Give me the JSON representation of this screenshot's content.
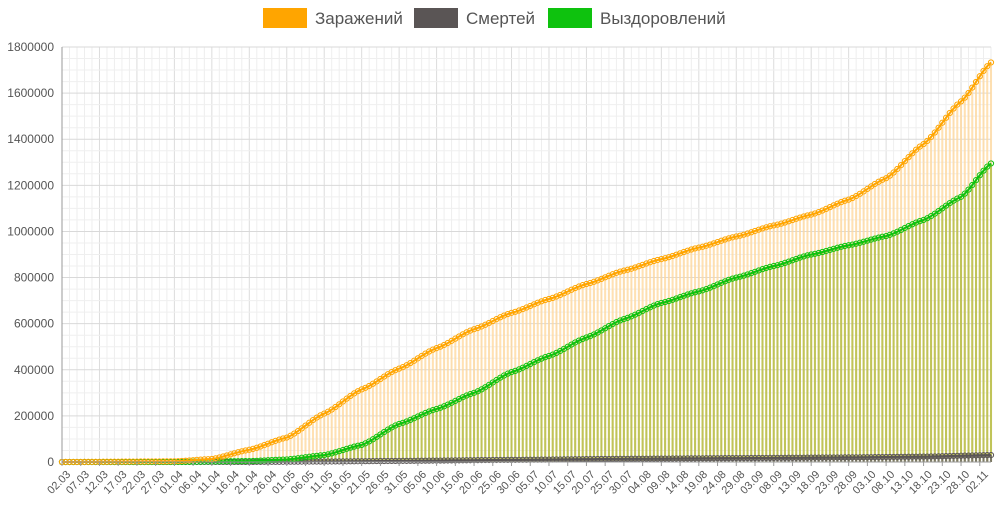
{
  "chart_data": {
    "type": "line",
    "title": "",
    "xlabel": "",
    "ylabel": "",
    "ylim": [
      0,
      1800000
    ],
    "yticks": [
      0,
      200000,
      400000,
      600000,
      800000,
      1000000,
      1200000,
      1400000,
      1600000,
      1800000
    ],
    "grid": true,
    "legend_position": "top",
    "start_date": "2020-03-02",
    "end_date": "2020-11-05",
    "x_tick_labels": [
      "02.03",
      "07.03",
      "12.03",
      "17.03",
      "22.03",
      "27.03",
      "01.04",
      "06.04",
      "11.04",
      "16.04",
      "21.04",
      "26.04",
      "01.05",
      "06.05",
      "11.05",
      "16.05",
      "21.05",
      "26.05",
      "31.05",
      "05.06",
      "10.06",
      "15.06",
      "20.06",
      "25.06",
      "30.06",
      "05.07",
      "10.07",
      "15.07",
      "20.07",
      "25.07",
      "30.07",
      "04.08",
      "09.08",
      "14.08",
      "19.08",
      "24.08",
      "29.08",
      "03.09",
      "08.09",
      "13.09",
      "18.09",
      "23.09",
      "28.09",
      "03.10",
      "08.10",
      "13.10",
      "18.10",
      "23.10",
      "28.10",
      "02.11"
    ],
    "series": [
      {
        "name": "Заражений",
        "color": "#ffa500",
        "anchors": [
          [
            "02.03",
            3
          ],
          [
            "01.04",
            2800
          ],
          [
            "11.04",
            13000
          ],
          [
            "21.04",
            53000
          ],
          [
            "01.05",
            106000
          ],
          [
            "11.05",
            210000
          ],
          [
            "21.05",
            315000
          ],
          [
            "31.05",
            405000
          ],
          [
            "10.06",
            494000
          ],
          [
            "20.06",
            576000
          ],
          [
            "30.06",
            647000
          ],
          [
            "10.07",
            707000
          ],
          [
            "20.07",
            772000
          ],
          [
            "30.07",
            830000
          ],
          [
            "09.08",
            880000
          ],
          [
            "19.08",
            930000
          ],
          [
            "29.08",
            978000
          ],
          [
            "08.09",
            1026000
          ],
          [
            "18.09",
            1073000
          ],
          [
            "28.09",
            1138000
          ],
          [
            "08.10",
            1231000
          ],
          [
            "18.10",
            1379000
          ],
          [
            "28.10",
            1564000
          ],
          [
            "05.11",
            1733000
          ]
        ]
      },
      {
        "name": "Смертей",
        "color": "#5a5555",
        "anchors": [
          [
            "02.03",
            0
          ],
          [
            "01.04",
            20
          ],
          [
            "21.04",
            450
          ],
          [
            "11.05",
            2100
          ],
          [
            "31.05",
            4800
          ],
          [
            "30.06",
            9200
          ],
          [
            "30.07",
            13800
          ],
          [
            "29.08",
            16900
          ],
          [
            "28.09",
            20000
          ],
          [
            "18.10",
            23300
          ],
          [
            "05.11",
            30000
          ]
        ]
      },
      {
        "name": "Выздоровлений",
        "color": "#0ec20e",
        "anchors": [
          [
            "02.03",
            0
          ],
          [
            "01.04",
            190
          ],
          [
            "21.04",
            4000
          ],
          [
            "01.05",
            11000
          ],
          [
            "11.05",
            30000
          ],
          [
            "21.05",
            74000
          ],
          [
            "31.05",
            165000
          ],
          [
            "10.06",
            230000
          ],
          [
            "20.06",
            300000
          ],
          [
            "30.06",
            390000
          ],
          [
            "10.07",
            460000
          ],
          [
            "20.07",
            540000
          ],
          [
            "30.07",
            620000
          ],
          [
            "09.08",
            690000
          ],
          [
            "19.08",
            740000
          ],
          [
            "29.08",
            800000
          ],
          [
            "08.09",
            850000
          ],
          [
            "18.09",
            900000
          ],
          [
            "28.09",
            940000
          ],
          [
            "08.10",
            980000
          ],
          [
            "18.10",
            1050000
          ],
          [
            "28.10",
            1150000
          ],
          [
            "05.11",
            1295000
          ]
        ]
      }
    ]
  }
}
